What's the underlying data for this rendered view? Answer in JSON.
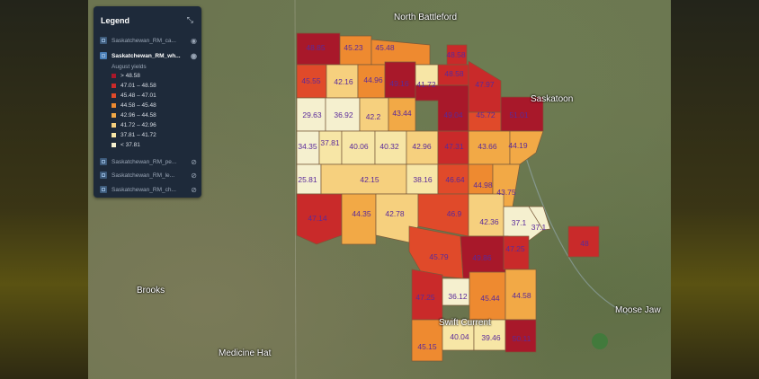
{
  "places": {
    "north_battleford": "North Battleford",
    "saskatoon": "Saskatoon",
    "brooks": "Brooks",
    "moose_jaw": "Moose Jaw",
    "swift_current": "Swift Current",
    "medicine_hat": "Medicine Hat"
  },
  "legend": {
    "title": "Legend",
    "subtitle": "August yields",
    "layers": [
      {
        "label": "Saskatchewan_RM_ca..."
      },
      {
        "label": "Saskatchewan_RM_wh..."
      },
      {
        "label": "Saskatchewan_RM_pe..."
      },
      {
        "label": "Saskatchewan_RM_le..."
      },
      {
        "label": "Saskatchewan_RM_ch..."
      }
    ],
    "classes": [
      {
        "label": "> 48.58",
        "color": "#a8182a"
      },
      {
        "label": "47.01 – 48.58",
        "color": "#c92a2a"
      },
      {
        "label": "45.48 – 47.01",
        "color": "#e04a2a"
      },
      {
        "label": "44.58 – 45.48",
        "color": "#ee8a30"
      },
      {
        "label": "42.96 – 44.58",
        "color": "#f2a946"
      },
      {
        "label": "41.72 – 42.96",
        "color": "#f6d07e"
      },
      {
        "label": "37.81 – 41.72",
        "color": "#f7e6a6"
      },
      {
        "label": "< 37.81",
        "color": "#f5f0cf"
      }
    ]
  },
  "regions": [
    "48.85",
    "45.23",
    "45.48",
    "48.58",
    "48.58",
    "45.55",
    "42.16",
    "44.96",
    "49.16",
    "41.72",
    "47.97",
    "29.63",
    "36.92",
    "42.2",
    "43.44",
    "49.04",
    "45.72",
    "51.01",
    "34.35",
    "37.81",
    "40.06",
    "40.32",
    "42.96",
    "47.31",
    "43.66",
    "44.19",
    "25.81",
    "42.15",
    "38.16",
    "46.64",
    "44.98",
    "43.75",
    "47.14",
    "44.35",
    "42.78",
    "46.9",
    "42.36",
    "37.1",
    "37.1",
    "48",
    "45.79",
    "49.86",
    "47.25",
    "47.25",
    "36.12",
    "45.44",
    "44.58",
    "45.15",
    "40.04",
    "39.46",
    "50.11"
  ]
}
